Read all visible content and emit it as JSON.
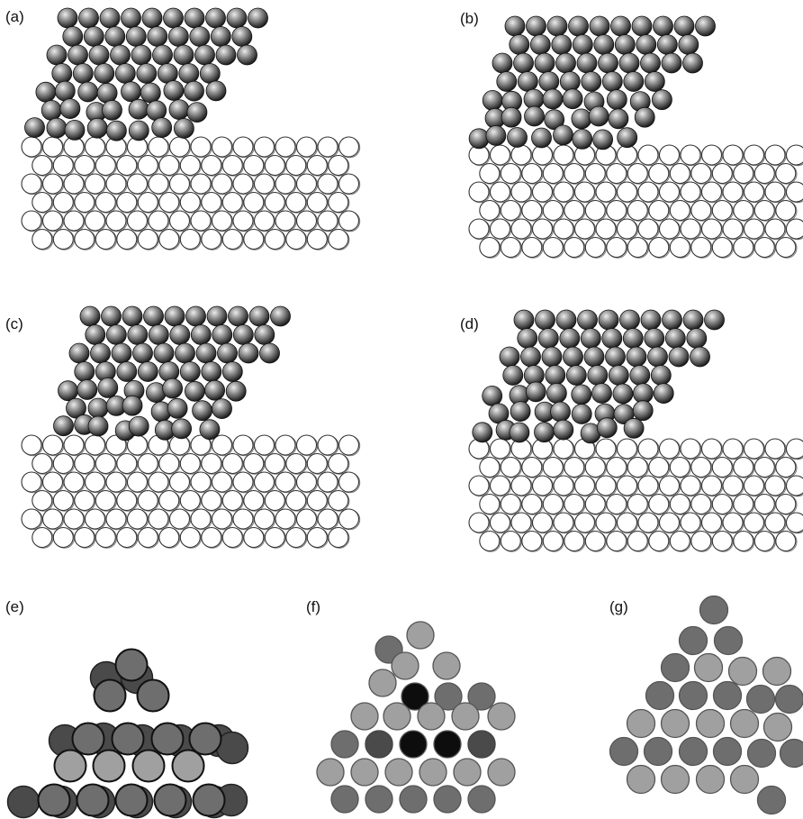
{
  "figure": {
    "panels": [
      {
        "id": "a",
        "label": "(a)"
      },
      {
        "id": "b",
        "label": "(b)"
      },
      {
        "id": "c",
        "label": "(c)"
      },
      {
        "id": "d",
        "label": "(d)"
      },
      {
        "id": "e",
        "label": "(e)"
      },
      {
        "id": "f",
        "label": "(f)"
      },
      {
        "id": "g",
        "label": "(g)"
      }
    ]
  },
  "colors": {
    "background": "#ffffff",
    "atom_dark_edge": "#222222",
    "atom_light_edge": "#333333",
    "atom_light_fill": "#ffffff",
    "sphere_highlight": "#e8e8e8",
    "sphere_mid": "#8a8a8a",
    "sphere_shadow": "#1a1a1a",
    "gray_light": "#a0a0a0",
    "gray_mid": "#6e6e6e",
    "gray_dark": "#4a4a4a",
    "black": "#0d0d0d"
  }
}
